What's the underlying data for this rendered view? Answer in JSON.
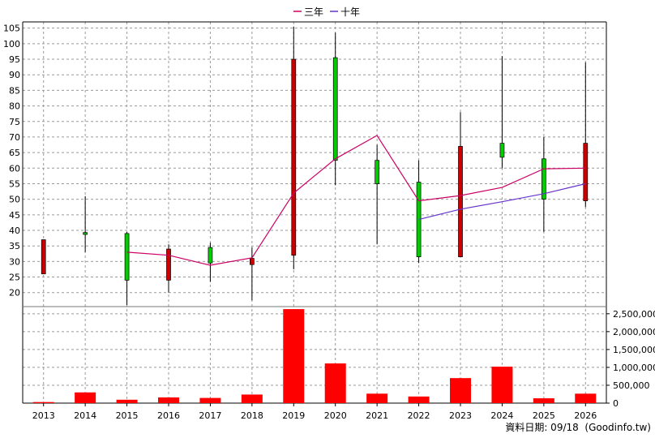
{
  "chart_data": {
    "type": "candlestick",
    "legend": {
      "placement": "top-center",
      "items": [
        {
          "label": "三年",
          "color": "#cc0066"
        },
        {
          "label": "十年",
          "color": "#6633cc"
        }
      ]
    },
    "years": [
      "2013",
      "2014",
      "2015",
      "2016",
      "2017",
      "2018",
      "2019",
      "2020",
      "2021",
      "2022",
      "2023",
      "2024",
      "2025",
      "2026"
    ],
    "price_axis": {
      "ylim": [
        15.5,
        107
      ],
      "ticks": [
        20,
        25,
        30,
        35,
        40,
        45,
        50,
        55,
        60,
        65,
        70,
        75,
        80,
        85,
        90,
        95,
        100,
        105
      ],
      "grid": true
    },
    "volume_axis": {
      "ylim": [
        0,
        2700000
      ],
      "ticks": [
        0,
        500000,
        1000000,
        1500000,
        2000000,
        2500000
      ],
      "tick_labels": [
        "0",
        "500,000",
        "1,000,000",
        "1,500,000",
        "2,000,000",
        "2,500,000"
      ],
      "grid": true
    },
    "candles": [
      {
        "year": "2013",
        "open": 37.0,
        "close": 26.0,
        "high": 37.0,
        "low": 26.0
      },
      {
        "year": "2014",
        "open": 38.7,
        "close": 39.3,
        "high": 51.0,
        "low": 33.0
      },
      {
        "year": "2015",
        "open": 24.0,
        "close": 39.0,
        "high": 39.5,
        "low": 16.0
      },
      {
        "year": "2016",
        "open": 34.0,
        "close": 24.0,
        "high": 35.5,
        "low": 20.0
      },
      {
        "year": "2017",
        "open": 29.5,
        "close": 34.5,
        "high": 36.0,
        "low": 23.5
      },
      {
        "year": "2018",
        "open": 31.0,
        "close": 29.0,
        "high": 34.5,
        "low": 17.5
      },
      {
        "year": "2019",
        "open": 95.0,
        "close": 32.0,
        "high": 105.5,
        "low": 27.5
      },
      {
        "year": "2020",
        "open": 62.5,
        "close": 95.5,
        "high": 103.5,
        "low": 54.5
      },
      {
        "year": "2021",
        "open": 55.0,
        "close": 62.5,
        "high": 67.5,
        "low": 35.5
      },
      {
        "year": "2022",
        "open": 31.5,
        "close": 55.5,
        "high": 62.5,
        "low": 29.5
      },
      {
        "year": "2023",
        "open": 67.0,
        "close": 31.5,
        "high": 78.0,
        "low": 31.5
      },
      {
        "year": "2024",
        "open": 63.5,
        "close": 68.0,
        "high": 96.0,
        "low": 60.0
      },
      {
        "year": "2025",
        "open": 50.0,
        "close": 63.0,
        "high": 70.0,
        "low": 39.5
      },
      {
        "year": "2026",
        "open": 68.0,
        "close": 49.5,
        "high": 94.0,
        "low": 47.5
      }
    ],
    "up_color": "#00cc00",
    "down_color": "#cc0000",
    "series": [
      {
        "name": "三年",
        "color": "#cc0066",
        "x": [
          "2015",
          "2016",
          "2017",
          "2018",
          "2019",
          "2020",
          "2021",
          "2022",
          "2023",
          "2024",
          "2025",
          "2026"
        ],
        "values": [
          33.0,
          32.0,
          28.8,
          31.2,
          52.0,
          63.0,
          70.5,
          49.5,
          51.2,
          53.8,
          59.8,
          60.0
        ]
      },
      {
        "name": "十年",
        "color": "#6633cc",
        "x": [
          "2022",
          "2023",
          "2024",
          "2025",
          "2026"
        ],
        "values": [
          43.5,
          46.8,
          49.2,
          51.8,
          55.0
        ]
      }
    ],
    "volume": {
      "color": "#ff0000",
      "values": [
        30000,
        300000,
        95000,
        160000,
        145000,
        240000,
        2630000,
        1110000,
        265000,
        185000,
        700000,
        1020000,
        135000,
        265000
      ]
    }
  },
  "footer": {
    "source_text": "資料日期: 09/18  (Goodinfo.tw)"
  }
}
